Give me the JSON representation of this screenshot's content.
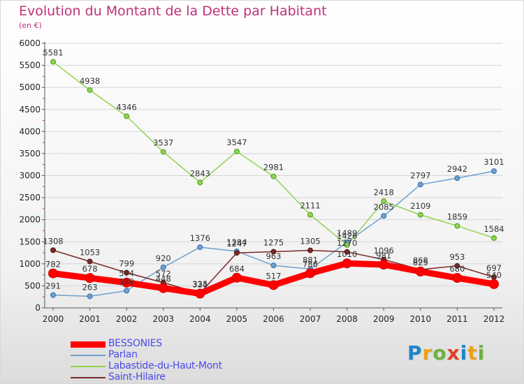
{
  "header": {
    "title": "Evolution du Montant de la Dette par Habitant",
    "subtitle": "(en €)"
  },
  "logo": {
    "text": "Proxiti",
    "letters": [
      {
        "ch": "P",
        "color": "#1f86c9"
      },
      {
        "ch": "r",
        "color": "#e8a21a"
      },
      {
        "ch": "o",
        "color": "#6cb33f"
      },
      {
        "ch": "x",
        "color": "#e0402a"
      },
      {
        "ch": "i",
        "color": "#1f86c9"
      },
      {
        "ch": "t",
        "color": "#e8a21a"
      },
      {
        "ch": "i",
        "color": "#6cb33f"
      }
    ]
  },
  "chart_data": {
    "type": "line",
    "title": "Evolution du Montant de la Dette par Habitant",
    "ylabel": "(en €)",
    "ylim": [
      0,
      6000
    ],
    "yticks": [
      0,
      500,
      1000,
      1500,
      2000,
      2500,
      3000,
      3500,
      4000,
      4500,
      5000,
      5500,
      6000
    ],
    "x": [
      2000,
      2001,
      2002,
      2003,
      2004,
      2005,
      2006,
      2007,
      2008,
      2009,
      2010,
      2011,
      2012
    ],
    "legend_position": "bottom-left",
    "series": [
      {
        "name": "BESSONIES",
        "color": "#ff0000",
        "values": [
          782,
          678,
          574,
          448,
          324,
          684,
          517,
          786,
          1010,
          981,
          825,
          680,
          540
        ]
      },
      {
        "name": "Parlan",
        "color": "#6fa0cc",
        "values": [
          291,
          263,
          389,
          920,
          1376,
          1284,
          963,
          881,
          1489,
          2085,
          2797,
          2942,
          3101
        ]
      },
      {
        "name": "Labastide-du-Haut-Mont",
        "color": "#8fd34f",
        "values": [
          5581,
          4938,
          4346,
          3537,
          2843,
          3547,
          2981,
          2111,
          1426,
          2418,
          2109,
          1859,
          1584
        ]
      },
      {
        "name": "Saint-Hilaire",
        "color": "#7a2828",
        "values": [
          1308,
          1053,
          799,
          572,
          335,
          1247,
          1275,
          1305,
          1270,
          1096,
          868,
          953,
          697
        ]
      }
    ]
  }
}
